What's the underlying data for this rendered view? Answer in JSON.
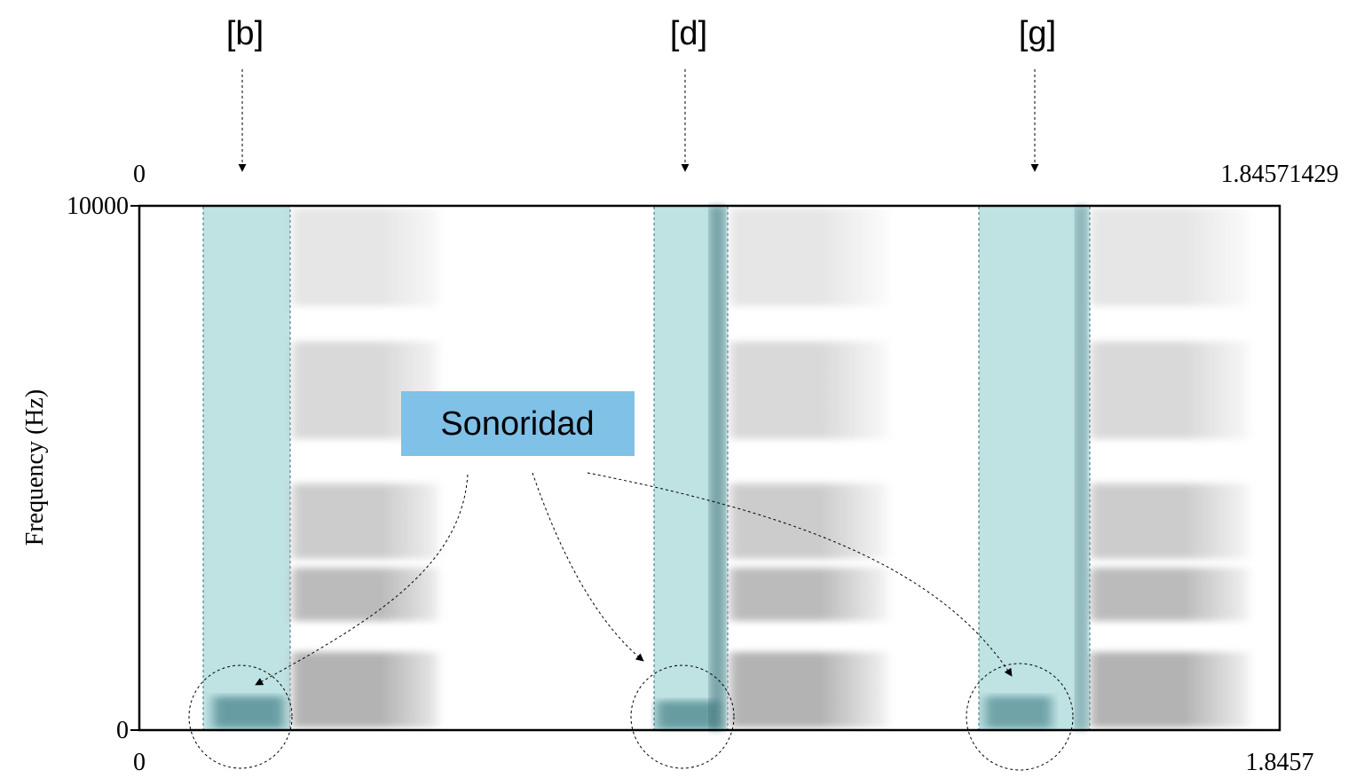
{
  "labels": {
    "segments": [
      "[b]",
      "[d]",
      "[g]"
    ],
    "callout": "Sonoridad"
  },
  "axes": {
    "top_left": "0",
    "top_right": "1.84571429",
    "y_top": "10000",
    "y_bottom": "0",
    "y_label": "Frequency (Hz)",
    "bottom_left": "0",
    "bottom_right": "1.8457"
  }
}
